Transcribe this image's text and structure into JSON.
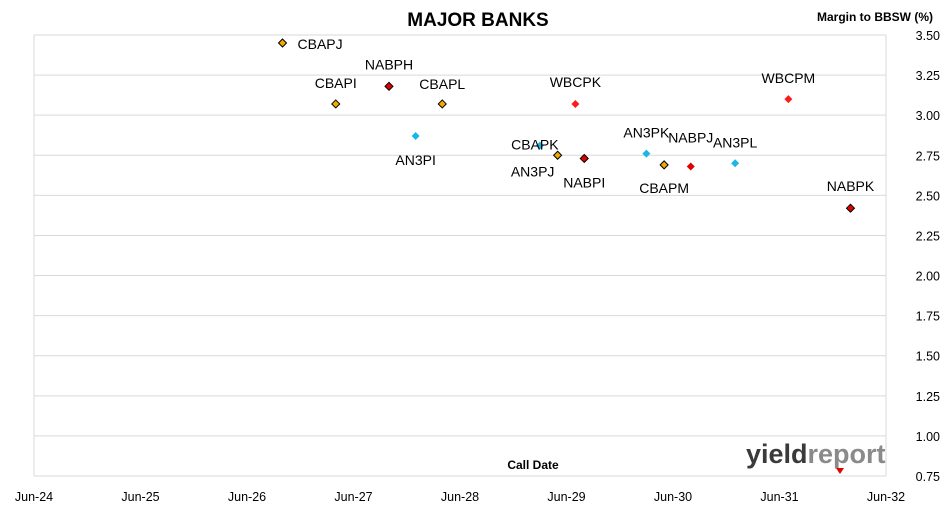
{
  "chart_data": {
    "type": "scatter",
    "title": "MAJOR BANKS",
    "ylabel": "Margin to BBSW (%)",
    "xlabel": "Call Date",
    "x_ticks": [
      "Jun-24",
      "Jun-25",
      "Jun-26",
      "Jun-27",
      "Jun-28",
      "Jun-29",
      "Jun-30",
      "Jun-31",
      "Jun-32"
    ],
    "y_ticks": [
      "0.75",
      "1.00",
      "1.25",
      "1.50",
      "1.75",
      "2.00",
      "2.25",
      "2.50",
      "2.75",
      "3.00",
      "3.25",
      "3.50"
    ],
    "ylim": [
      0.75,
      3.5
    ],
    "xlim": [
      "2024-06",
      "2032-06"
    ],
    "grid": "horizontal",
    "colors": {
      "CBA": "#f2a900",
      "NAB": "#e00000",
      "WBC": "#ff1a1a",
      "ANZ": "#1ab6e6"
    },
    "points": [
      {
        "label": "CBAPJ",
        "bank": "CBA",
        "x": "2026-10",
        "y": 3.45,
        "outline": true
      },
      {
        "label": "CBAPI",
        "bank": "CBA",
        "x": "2027-04",
        "y": 3.07,
        "outline": true
      },
      {
        "label": "NABPH",
        "bank": "NAB",
        "x": "2027-10",
        "y": 3.18,
        "outline": true
      },
      {
        "label": "CBAPL",
        "bank": "CBA",
        "x": "2028-04",
        "y": 3.07,
        "outline": true
      },
      {
        "label": "AN3PI",
        "bank": "ANZ",
        "x": "2028-01",
        "y": 2.87,
        "outline": false
      },
      {
        "label": "WBCPK",
        "bank": "WBC",
        "x": "2029-07",
        "y": 3.07,
        "outline": false
      },
      {
        "label": "CBAPK",
        "bank": "ANZ",
        "x": "2029-03",
        "y": 2.81,
        "outline": false
      },
      {
        "label": "AN3PJ",
        "bank": "CBA",
        "x": "2029-05",
        "y": 2.75,
        "outline": true
      },
      {
        "label": "NABPI",
        "bank": "NAB",
        "x": "2029-08",
        "y": 2.73,
        "outline": true
      },
      {
        "label": "AN3PK",
        "bank": "ANZ",
        "x": "2030-03",
        "y": 2.76,
        "outline": false
      },
      {
        "label": "CBAPM",
        "bank": "CBA",
        "x": "2030-05",
        "y": 2.69,
        "outline": true
      },
      {
        "label": "NABPJ",
        "bank": "NAB",
        "x": "2030-08",
        "y": 2.68,
        "outline": false
      },
      {
        "label": "AN3PL",
        "bank": "ANZ",
        "x": "2031-01",
        "y": 2.7,
        "outline": false
      },
      {
        "label": "WBCPM",
        "bank": "WBC",
        "x": "2031-07",
        "y": 3.1,
        "outline": false
      },
      {
        "label": "NABPK",
        "bank": "NAB",
        "x": "2032-02",
        "y": 2.42,
        "outline": true
      }
    ]
  },
  "logo": {
    "part1": "yield",
    "part2": "report"
  }
}
